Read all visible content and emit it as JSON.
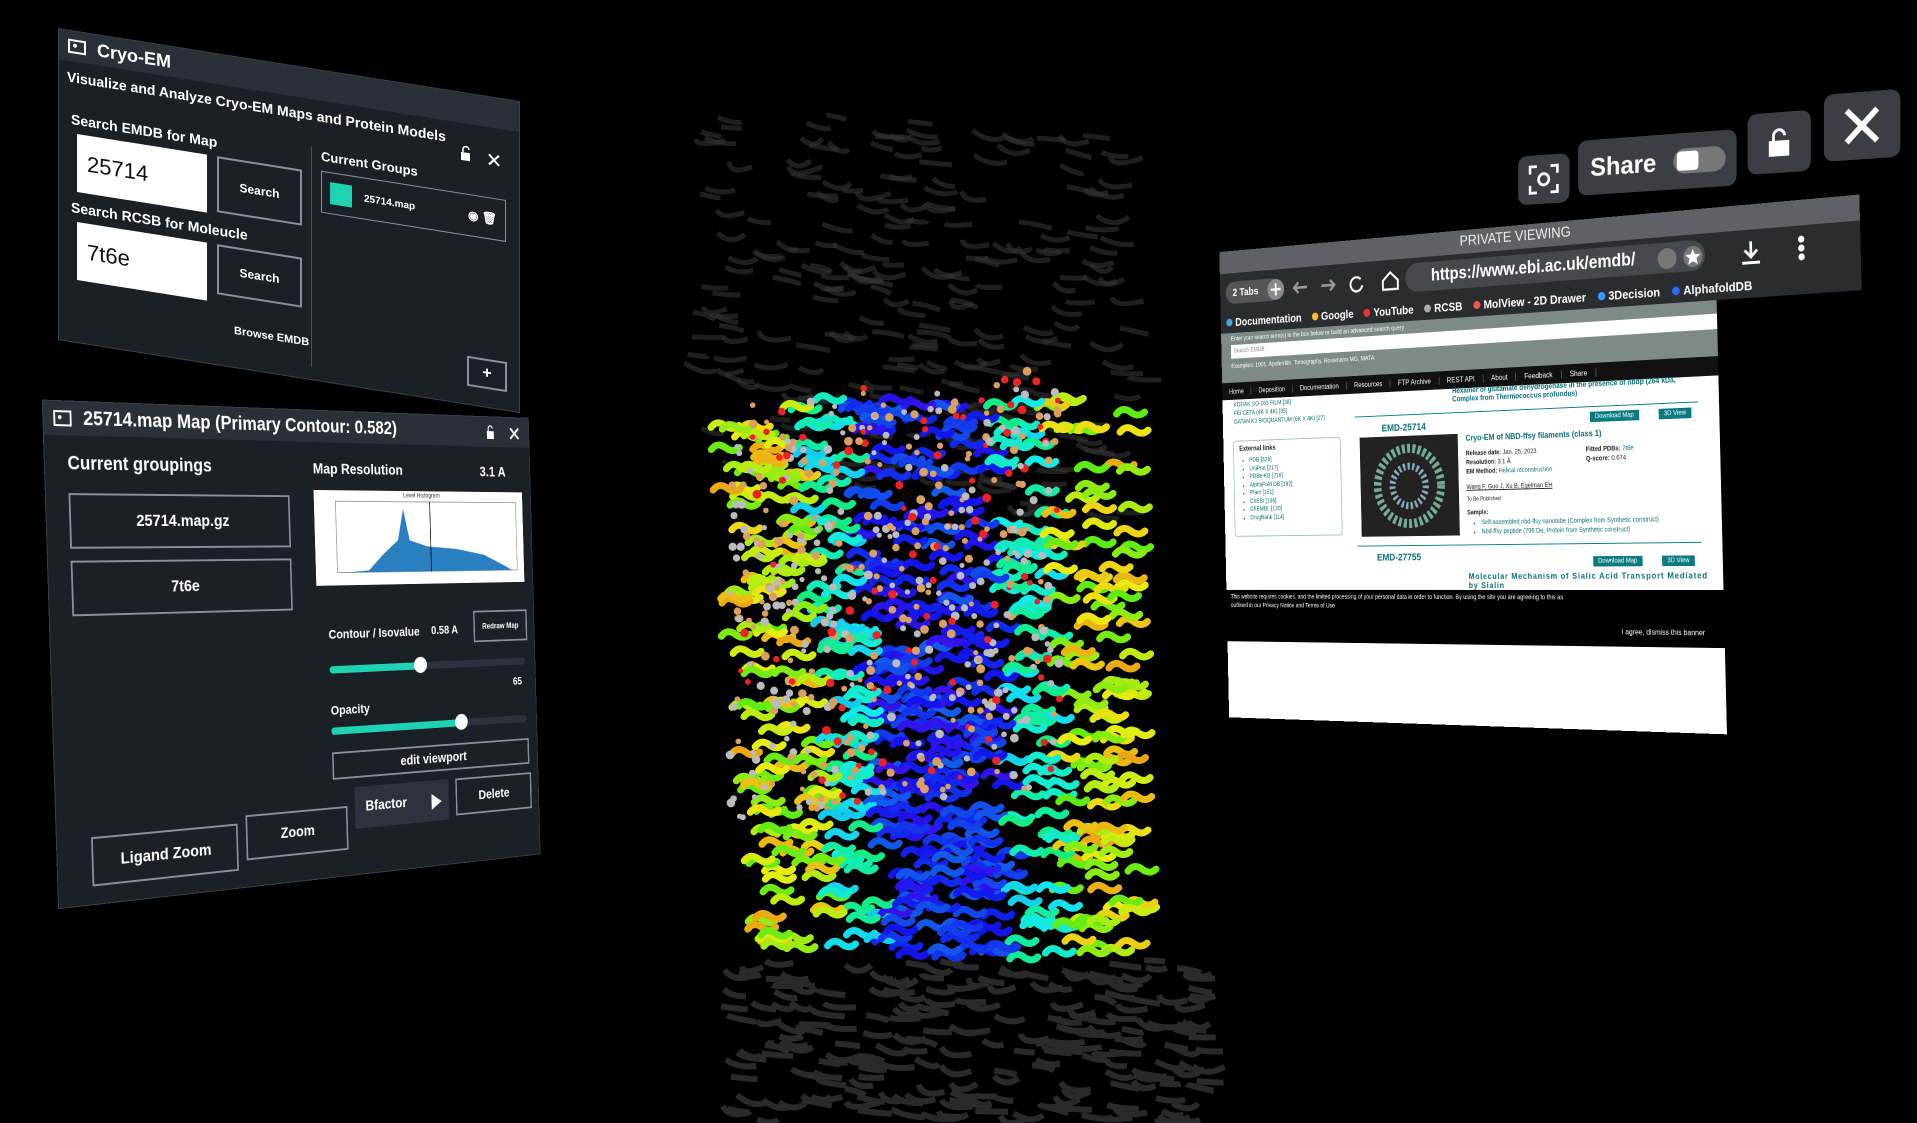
{
  "cryo_panel": {
    "title": "Cryo-EM",
    "subtitle": "Visualize and Analyze Cryo-EM Maps and Protein Models",
    "emdb_label": "Search EMDB for Map",
    "emdb_input": "25714",
    "emdb_button": "Search",
    "rcsb_label": "Search RCSB for Moleucle",
    "rcsb_input": "7t6e",
    "rcsb_button": "Search",
    "browse": "Browse EMDB",
    "add": "+",
    "groups_label": "Current Groups",
    "groups": [
      "25714.map"
    ]
  },
  "map_panel": {
    "title": "25714.map Map (Primary Contour: 0.582)",
    "groupings_label": "Current groupings",
    "groupings": [
      "25714.map.gz",
      "7t6e"
    ],
    "resolution_label": "Map Resolution",
    "resolution": "3.1 A",
    "histogram_title": "Level Histogram",
    "contour_label": "Contour / Isovalue",
    "contour_value": "0.58 A",
    "redraw": "Redraw Map",
    "opacity_label": "Opacity",
    "opacity_value": 65,
    "edit_viewport": "edit viewport",
    "bfactor": "Bfactor",
    "delete": "Delete",
    "ligand_zoom": "Ligand Zoom",
    "zoom": "Zoom"
  },
  "toolbar": {
    "share": "Share"
  },
  "browser": {
    "banner": "PRIVATE VIEWING",
    "tabs": "2 Tabs",
    "url": "https://www.ebi.ac.uk/emdb/",
    "bookmarks": [
      "Documentation",
      "Google",
      "YouTube",
      "RCSB",
      "MolView - 2D Drawer",
      "3Decision",
      "AlphafoldDB"
    ],
    "search_prompt": "Enter your search term(s) in the box below or build an advanced search query",
    "search_placeholder": "Search EMDB",
    "search_examples": "Examples: 1001, Apoferritin, Tomography, Rossmann MG, MATA",
    "nav": [
      "Home",
      "Deposition",
      "Documentation",
      "Resources",
      "FTP Archive",
      "REST API",
      "About",
      "Feedback",
      "Share"
    ],
    "detectors": [
      "KODAK SO-163 FILM [38]",
      "FEI CETA (4K X 4K) [35]",
      "GATAN K3 BIOQUANTUM (6K X 4K) [27]"
    ],
    "external_links_title": "External links",
    "external_links": [
      "PDB [326]",
      "UniProt [217]",
      "PDBe-KB [216]",
      "AlphaFold DB [192]",
      "Pfam [151]",
      "ChEBI [136]",
      "ChEMBL [130]",
      "DrugBank [114]"
    ],
    "prev_entry": "Hexamer of glutamate dehydrogenase in the presence of nbdp (264 kDa, Complex from Thermococcus profundus)",
    "entry1": {
      "id": "EMD-25714",
      "title": "Cryo-EM of NBD-ffsy filaments (class 1)",
      "download": "Download Map",
      "view": "3D View",
      "fields": [
        {
          "label": "Release date:",
          "value": "Jan. 25, 2023"
        },
        {
          "label": "Resolution:",
          "value": "3.1 Å"
        },
        {
          "label": "EM Method:",
          "value": "Helical reconstruction"
        }
      ],
      "fitted": {
        "label": "Fitted PDBs:",
        "value": "7t6e"
      },
      "qscore": {
        "label": "Q-score:",
        "value": "0.674"
      },
      "authors": "Wang F, Guo J, Xu B, Egelman EH",
      "status": "To Be Published",
      "sample_label": "Sample:",
      "samples": [
        "Self-assembled nbd-ffsy nanotube (Complex from Synthetic construct)",
        "Nbd-ffsy peptide (796 Da, Protein from Synthetic construct)"
      ]
    },
    "entry2": {
      "id": "EMD-27755",
      "title": "Molecular Mechanism of Sialic Acid Transport Mediated by Sialin",
      "download": "Download Map",
      "view": "3D View"
    },
    "cookie_text": "This website requires cookies, and the limited processing of your personal data in order to function. By using the site you are agreeing to this as outlined in our Privacy Notice and Terms of Use",
    "cookie_button": "I agree, dismiss this banner"
  }
}
